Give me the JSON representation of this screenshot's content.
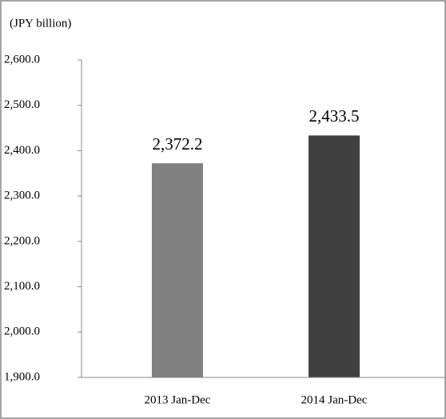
{
  "chart_data": {
    "type": "bar",
    "subtitle": "(JPY billion)",
    "categories": [
      "2013 Jan-Dec",
      "2014 Jan-Dec"
    ],
    "values": [
      2372.2,
      2433.5
    ],
    "value_labels": [
      "2,372.2",
      "2,433.5"
    ],
    "colors": [
      "#808080",
      "#404040"
    ],
    "ylim": [
      1900,
      2600
    ],
    "yticks": [
      {
        "value": 1900,
        "label": "1,900.0"
      },
      {
        "value": 2000,
        "label": "2,000.0"
      },
      {
        "value": 2100,
        "label": "2,100.0"
      },
      {
        "value": 2200,
        "label": "2,200.0"
      },
      {
        "value": 2300,
        "label": "2,300.0"
      },
      {
        "value": 2400,
        "label": "2,400.0"
      },
      {
        "value": 2500,
        "label": "2,500.0"
      },
      {
        "value": 2600,
        "label": "2,600.0"
      }
    ],
    "grid": false
  }
}
